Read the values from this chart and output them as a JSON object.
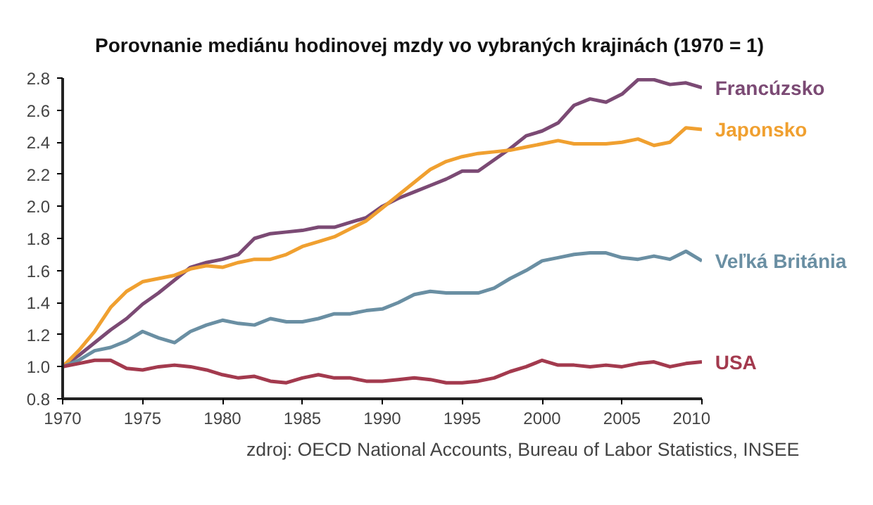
{
  "chart_data": {
    "type": "line",
    "title": "Porovnanie mediánu hodinovej mzdy vo vybraných krajinách (1970 = 1)",
    "annotations": [
      "zdroj: OECD National Accounts, Bureau of Labor Statistics, INSEE"
    ],
    "x": [
      1970,
      1971,
      1972,
      1973,
      1974,
      1975,
      1976,
      1977,
      1978,
      1979,
      1980,
      1981,
      1982,
      1983,
      1984,
      1985,
      1986,
      1987,
      1988,
      1989,
      1990,
      1991,
      1992,
      1993,
      1994,
      1995,
      1996,
      1997,
      1998,
      1999,
      2000,
      2001,
      2002,
      2003,
      2004,
      2005,
      2006,
      2007,
      2008,
      2009,
      2010
    ],
    "series": [
      {
        "name": "Francúzsko",
        "color": "#7b4a74",
        "values": [
          1.0,
          1.07,
          1.15,
          1.23,
          1.3,
          1.39,
          1.46,
          1.54,
          1.62,
          1.65,
          1.67,
          1.7,
          1.8,
          1.83,
          1.84,
          1.85,
          1.87,
          1.87,
          1.9,
          1.93,
          2.0,
          2.05,
          2.09,
          2.13,
          2.17,
          2.22,
          2.22,
          2.29,
          2.36,
          2.44,
          2.47,
          2.52,
          2.63,
          2.67,
          2.65,
          2.7,
          2.79,
          2.79,
          2.76,
          2.77,
          2.74
        ]
      },
      {
        "name": "Japonsko",
        "color": "#f0a030",
        "values": [
          1.0,
          1.1,
          1.22,
          1.37,
          1.47,
          1.53,
          1.55,
          1.57,
          1.61,
          1.63,
          1.62,
          1.65,
          1.67,
          1.67,
          1.7,
          1.75,
          1.78,
          1.81,
          1.86,
          1.91,
          1.99,
          2.07,
          2.15,
          2.23,
          2.28,
          2.31,
          2.33,
          2.34,
          2.35,
          2.37,
          2.39,
          2.41,
          2.39,
          2.39,
          2.39,
          2.4,
          2.42,
          2.38,
          2.4,
          2.49,
          2.48
        ]
      },
      {
        "name": "Veľká Británia",
        "color": "#6a8fa3",
        "values": [
          1.0,
          1.04,
          1.1,
          1.12,
          1.16,
          1.22,
          1.18,
          1.15,
          1.22,
          1.26,
          1.29,
          1.27,
          1.26,
          1.3,
          1.28,
          1.28,
          1.3,
          1.33,
          1.33,
          1.35,
          1.36,
          1.4,
          1.45,
          1.47,
          1.46,
          1.46,
          1.46,
          1.49,
          1.55,
          1.6,
          1.66,
          1.68,
          1.7,
          1.71,
          1.71,
          1.68,
          1.67,
          1.69,
          1.67,
          1.72,
          1.66
        ]
      },
      {
        "name": "USA",
        "color": "#a33a4e",
        "values": [
          1.0,
          1.02,
          1.04,
          1.04,
          0.99,
          0.98,
          1.0,
          1.01,
          1.0,
          0.98,
          0.95,
          0.93,
          0.94,
          0.91,
          0.9,
          0.93,
          0.95,
          0.93,
          0.93,
          0.91,
          0.91,
          0.92,
          0.93,
          0.92,
          0.9,
          0.9,
          0.91,
          0.93,
          0.97,
          1.0,
          1.04,
          1.01,
          1.01,
          1.0,
          1.01,
          1.0,
          1.02,
          1.03,
          1.0,
          1.02,
          1.03
        ]
      }
    ],
    "xlim": [
      1970,
      2010
    ],
    "xticks": [
      1970,
      1975,
      1980,
      1985,
      1990,
      1995,
      2000,
      2005,
      2010
    ],
    "ylim": [
      0.8,
      2.8
    ],
    "yticks": [
      {
        "value": 0.8,
        "label": "0.8"
      },
      {
        "value": 1.0,
        "label": "1.0"
      },
      {
        "value": 1.2,
        "label": "1.2"
      },
      {
        "value": 1.4,
        "label": "1.4"
      },
      {
        "value": 1.6,
        "label": "1.6"
      },
      {
        "value": 1.8,
        "label": "1.8"
      },
      {
        "value": 2.0,
        "label": "2.0"
      },
      {
        "value": 2.2,
        "label": "2.2"
      },
      {
        "value": 2.4,
        "label": "2.4"
      },
      {
        "value": 2.6,
        "label": "2.6"
      },
      {
        "value": 2.8,
        "label": "2.8"
      }
    ],
    "grid": false,
    "marker": "none",
    "line_style": "solid"
  }
}
